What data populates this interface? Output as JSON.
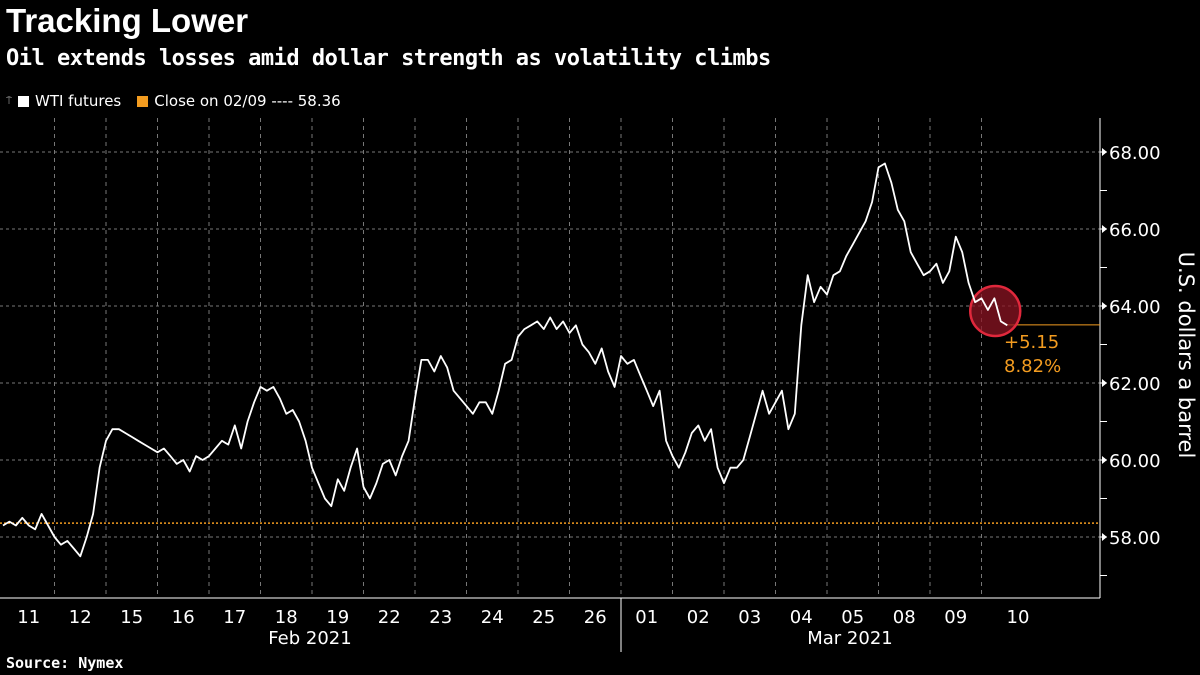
{
  "header": {
    "title": "Tracking Lower",
    "subtitle": "Oil extends losses amid dollar strength as volatility climbs"
  },
  "legend": [
    {
      "label": "WTI futures",
      "color": "#ffffff"
    },
    {
      "label": "Close on 02/09 ---- 58.36",
      "color": "#f39c20"
    }
  ],
  "source": "Source: Nymex",
  "chart_data": {
    "type": "line",
    "title": "Tracking Lower",
    "subtitle": "Oil extends losses amid dollar strength as volatility climbs",
    "ylabel": "U.S. dollars a barrel",
    "ylim": [
      56.8,
      69.0
    ],
    "yticks": [
      "58.00",
      "60.00",
      "62.00",
      "64.00",
      "66.00",
      "68.00"
    ],
    "y_axis_side": "right",
    "grid": true,
    "legend_placement": "top-left",
    "x_month_labels": [
      "Feb 2021",
      "Mar 2021"
    ],
    "days": [
      "11",
      "12",
      "15",
      "16",
      "17",
      "18",
      "19",
      "22",
      "23",
      "24",
      "25",
      "26",
      "01",
      "02",
      "03",
      "04",
      "05",
      "08",
      "09",
      "10"
    ],
    "series": [
      {
        "name": "WTI futures",
        "color": "#ffffff",
        "values_by_day": [
          [
            58.3,
            58.4,
            58.3,
            58.5,
            58.3,
            58.2,
            58.6,
            58.3
          ],
          [
            58.0,
            57.8,
            57.9,
            57.7,
            57.5,
            58.0,
            58.6,
            59.8
          ],
          [
            60.5,
            60.8,
            60.8,
            60.7,
            60.6,
            60.5,
            60.4,
            60.3
          ],
          [
            60.2,
            60.3,
            60.1,
            59.9,
            60.0,
            59.7,
            60.1,
            60.0
          ],
          [
            60.1,
            60.3,
            60.5,
            60.4,
            60.9,
            60.3,
            61.0,
            61.5
          ],
          [
            61.9,
            61.8,
            61.9,
            61.6,
            61.2,
            61.3,
            61.0,
            60.5
          ],
          [
            59.8,
            59.4,
            59.0,
            58.8,
            59.5,
            59.2,
            59.8,
            60.3
          ],
          [
            59.3,
            59.0,
            59.4,
            59.9,
            60.0,
            59.6,
            60.1,
            60.5
          ],
          [
            61.6,
            62.6,
            62.6,
            62.3,
            62.7,
            62.4,
            61.8,
            61.6
          ],
          [
            61.4,
            61.2,
            61.5,
            61.5,
            61.2,
            61.8,
            62.5,
            62.6
          ],
          [
            63.2,
            63.4,
            63.5,
            63.6,
            63.4,
            63.7,
            63.4,
            63.6
          ],
          [
            63.3,
            63.5,
            63.0,
            62.8,
            62.5,
            62.9,
            62.3,
            61.9
          ],
          [
            62.7,
            62.5,
            62.6,
            62.2,
            61.8,
            61.4,
            61.8,
            60.5
          ],
          [
            60.1,
            59.8,
            60.2,
            60.7,
            60.9,
            60.5,
            60.8,
            59.8
          ],
          [
            59.4,
            59.8,
            59.8,
            60.0,
            60.6,
            61.2,
            61.8,
            61.2
          ],
          [
            61.5,
            61.8,
            60.8,
            61.2,
            63.5,
            64.8,
            64.1,
            64.5
          ],
          [
            64.3,
            64.8,
            64.9,
            65.3,
            65.6,
            65.9,
            66.2,
            66.7
          ],
          [
            67.6,
            67.7,
            67.2,
            66.5,
            66.2,
            65.4,
            65.1,
            64.8
          ],
          [
            64.9,
            65.1,
            64.6,
            64.9,
            65.8,
            65.4,
            64.6,
            64.1
          ],
          [
            64.2,
            63.9,
            64.2,
            63.6,
            63.5
          ]
        ]
      }
    ],
    "reference_line": {
      "label": "Close on 02/09",
      "value": 58.36,
      "color": "#f39c20"
    },
    "annotation": {
      "change": "+5.15",
      "percent": "8.82%",
      "color": "#f39c20",
      "last_value": 63.51,
      "highlight_color": "#e0283c"
    }
  }
}
